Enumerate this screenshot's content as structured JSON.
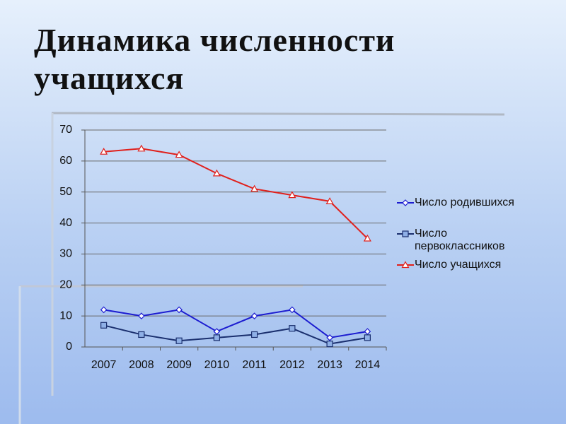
{
  "title": "Динамика численности учащихся",
  "chart_data": {
    "type": "line",
    "categories": [
      "2007",
      "2008",
      "2009",
      "2010",
      "2011",
      "2012",
      "2013",
      "2014"
    ],
    "series": [
      {
        "name": "Число родившихся",
        "color": "#1c1cd0",
        "marker": "diamond",
        "marker_fill": "#ffffff",
        "values": [
          12,
          10,
          12,
          5,
          10,
          12,
          3,
          5
        ]
      },
      {
        "name": "Число первоклассников",
        "color": "#1a2f6e",
        "marker": "square",
        "marker_fill": "#8fb0e6",
        "values": [
          7,
          4,
          2,
          3,
          4,
          6,
          1,
          3
        ]
      },
      {
        "name": "Число учащихся",
        "color": "#e0201c",
        "marker": "triangle",
        "marker_fill": "#ffffff",
        "values": [
          63,
          64,
          62,
          56,
          51,
          49,
          47,
          35
        ]
      }
    ],
    "ylim": [
      0,
      70
    ],
    "yticks": [
      0,
      10,
      20,
      30,
      40,
      50,
      60,
      70
    ],
    "grid": true
  }
}
